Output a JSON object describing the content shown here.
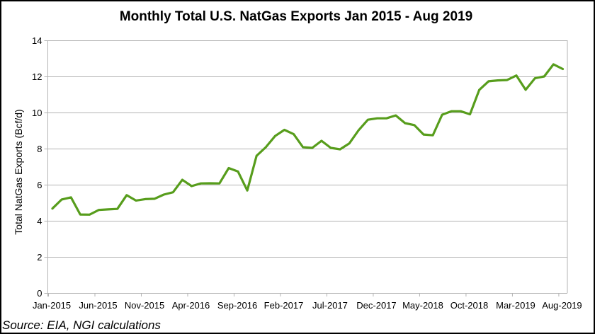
{
  "chart_data": {
    "type": "line",
    "title": "Monthly Total U.S. NatGas Exports Jan 2015 - Aug 2019",
    "xlabel": "",
    "ylabel": "Total NatGas Exports (Bcf/d)",
    "ylim": [
      0,
      14
    ],
    "yticks": [
      0,
      2,
      4,
      6,
      8,
      10,
      12,
      14
    ],
    "grid": true,
    "legend": "none",
    "x_tick_every": 5,
    "x_tick_labels": [
      "Jan-2015",
      "Jun-2015",
      "Nov-2015",
      "Apr-2016",
      "Sep-2016",
      "Feb-2017",
      "Jul-2017",
      "Dec-2017",
      "May-2018",
      "Oct-2018",
      "Mar-2019",
      "Aug-2019"
    ],
    "x": [
      "Jan-2015",
      "Feb-2015",
      "Mar-2015",
      "Apr-2015",
      "May-2015",
      "Jun-2015",
      "Jul-2015",
      "Aug-2015",
      "Sep-2015",
      "Oct-2015",
      "Nov-2015",
      "Dec-2015",
      "Jan-2016",
      "Feb-2016",
      "Mar-2016",
      "Apr-2016",
      "May-2016",
      "Jun-2016",
      "Jul-2016",
      "Aug-2016",
      "Sep-2016",
      "Oct-2016",
      "Nov-2016",
      "Dec-2016",
      "Jan-2017",
      "Feb-2017",
      "Mar-2017",
      "Apr-2017",
      "May-2017",
      "Jun-2017",
      "Jul-2017",
      "Aug-2017",
      "Sep-2017",
      "Oct-2017",
      "Nov-2017",
      "Dec-2017",
      "Jan-2018",
      "Feb-2018",
      "Mar-2018",
      "Apr-2018",
      "May-2018",
      "Jun-2018",
      "Jul-2018",
      "Aug-2018",
      "Sep-2018",
      "Oct-2018",
      "Nov-2018",
      "Dec-2018",
      "Jan-2019",
      "Feb-2019",
      "Mar-2019",
      "Apr-2019",
      "May-2019",
      "Jun-2019",
      "Jul-2019",
      "Aug-2019"
    ],
    "series": [
      {
        "name": "Total U.S. NatGas Exports",
        "color": "#579d1c",
        "values": [
          4.68,
          5.18,
          5.3,
          4.35,
          4.34,
          4.6,
          4.63,
          4.66,
          5.42,
          5.12,
          5.2,
          5.22,
          5.45,
          5.58,
          6.27,
          5.92,
          6.07,
          6.08,
          6.07,
          6.92,
          6.73,
          5.68,
          7.6,
          8.08,
          8.7,
          9.04,
          8.8,
          8.08,
          8.04,
          8.43,
          8.04,
          7.96,
          8.29,
          9.02,
          9.6,
          9.68,
          9.68,
          9.84,
          9.41,
          9.3,
          8.78,
          8.74,
          9.88,
          10.07,
          10.07,
          9.9,
          11.25,
          11.73,
          11.78,
          11.8,
          12.05,
          11.26,
          11.9,
          12.0,
          12.67,
          12.41
        ]
      }
    ]
  },
  "footer": {
    "source": "Source: EIA, NGI calculations"
  },
  "colors": {
    "grid": "#b3b3b3",
    "axis": "#b3b3b3",
    "frame": "#000000"
  }
}
